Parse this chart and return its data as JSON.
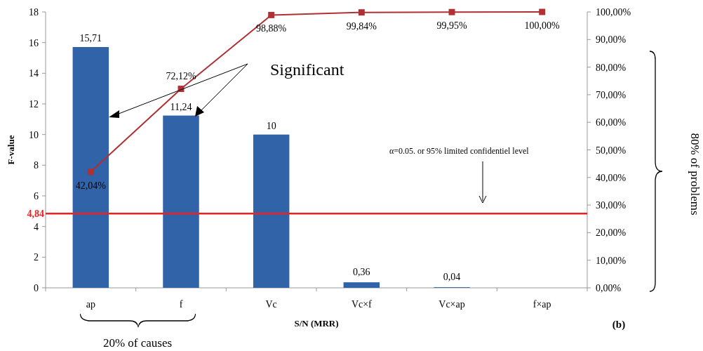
{
  "chart_data": {
    "type": "bar",
    "categories": [
      "ap",
      "f",
      "Vc",
      "Vc×f",
      "Vc×ap",
      "f×ap"
    ],
    "xlabel": "S/N (MRR)",
    "ylabel": "F-value",
    "series": [
      {
        "color": "#3163a8",
        "values": [
          15.71,
          11.24,
          10,
          0.36,
          0.04,
          0
        ],
        "value_labels": [
          "15,71",
          "11,24",
          "10",
          "0,36",
          "0,04",
          null
        ]
      },
      {
        "type": "line",
        "axis": "y2",
        "color": "#b03033",
        "marker": "square",
        "values": [
          42.04,
          72.12,
          98.88,
          99.84,
          99.95,
          100
        ],
        "value_labels": [
          "42,04%",
          "72,12%",
          "98,88%",
          "99,84%",
          "99,95%",
          "100,00%"
        ]
      }
    ],
    "ylim": [
      0,
      18
    ],
    "yticks": [
      0,
      2,
      4,
      6,
      8,
      10,
      12,
      14,
      16,
      18
    ],
    "y2lim": [
      0,
      100
    ],
    "y2ticks": [
      {
        "value": 0,
        "label": "0,00%"
      },
      {
        "value": 10,
        "label": "10,00%"
      },
      {
        "value": 20,
        "label": "20,00%"
      },
      {
        "value": 30,
        "label": "30,00%"
      },
      {
        "value": 40,
        "label": "40,00%"
      },
      {
        "value": 50,
        "label": "50,00%"
      },
      {
        "value": 60,
        "label": "60,00%"
      },
      {
        "value": 70,
        "label": "70,00%"
      },
      {
        "value": 80,
        "label": "80,00%"
      },
      {
        "value": 90,
        "label": "90,00%"
      },
      {
        "value": 100,
        "label": "100,00%"
      }
    ],
    "ref_lines": [
      {
        "axis": "y",
        "value": 4.84,
        "label": "4,84",
        "color": "#f02020"
      }
    ],
    "annotations": [
      "Significant",
      "α=0.05. or 95% limited confidentiel level",
      "20% of causes",
      "80% of problems",
      "(b)"
    ]
  }
}
